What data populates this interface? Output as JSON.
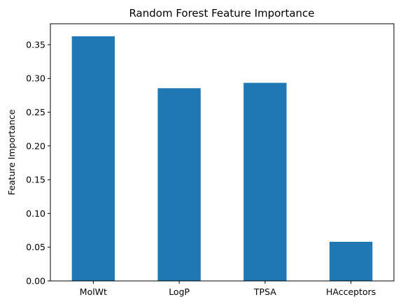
{
  "chart_data": {
    "type": "bar",
    "title": "Random Forest Feature Importance",
    "xlabel": "",
    "ylabel": "Feature Importance",
    "categories": [
      "MolWt",
      "LogP",
      "TPSA",
      "HAcceptors"
    ],
    "values": [
      0.3625,
      0.2855,
      0.2935,
      0.058
    ],
    "ylim": [
      0,
      0.381
    ],
    "yticks": [
      "0.00",
      "0.05",
      "0.10",
      "0.15",
      "0.20",
      "0.25",
      "0.30",
      "0.35"
    ],
    "grid": false,
    "legend": "none",
    "bar_color": "#1f77b4"
  }
}
